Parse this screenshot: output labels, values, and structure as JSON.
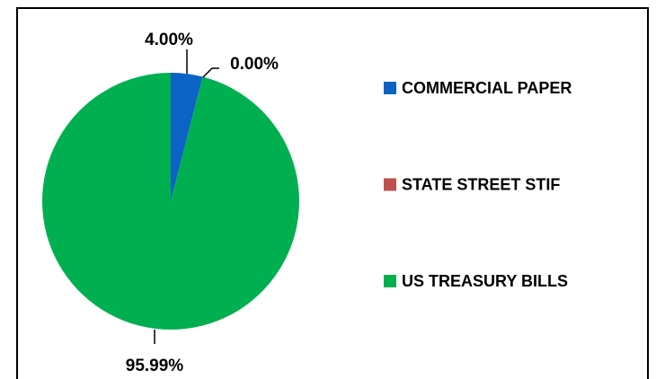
{
  "chart_data": {
    "type": "pie",
    "categories": [
      "COMMERCIAL PAPER",
      "STATE STREET STIF",
      "US TREASURY BILLS"
    ],
    "values": [
      4.0,
      0.0,
      95.99
    ],
    "value_labels": [
      "4.00%",
      "0.00%",
      "95.99%"
    ],
    "colors": [
      "#0b63c5",
      "#c0504d",
      "#00b050"
    ],
    "legend": "right"
  }
}
